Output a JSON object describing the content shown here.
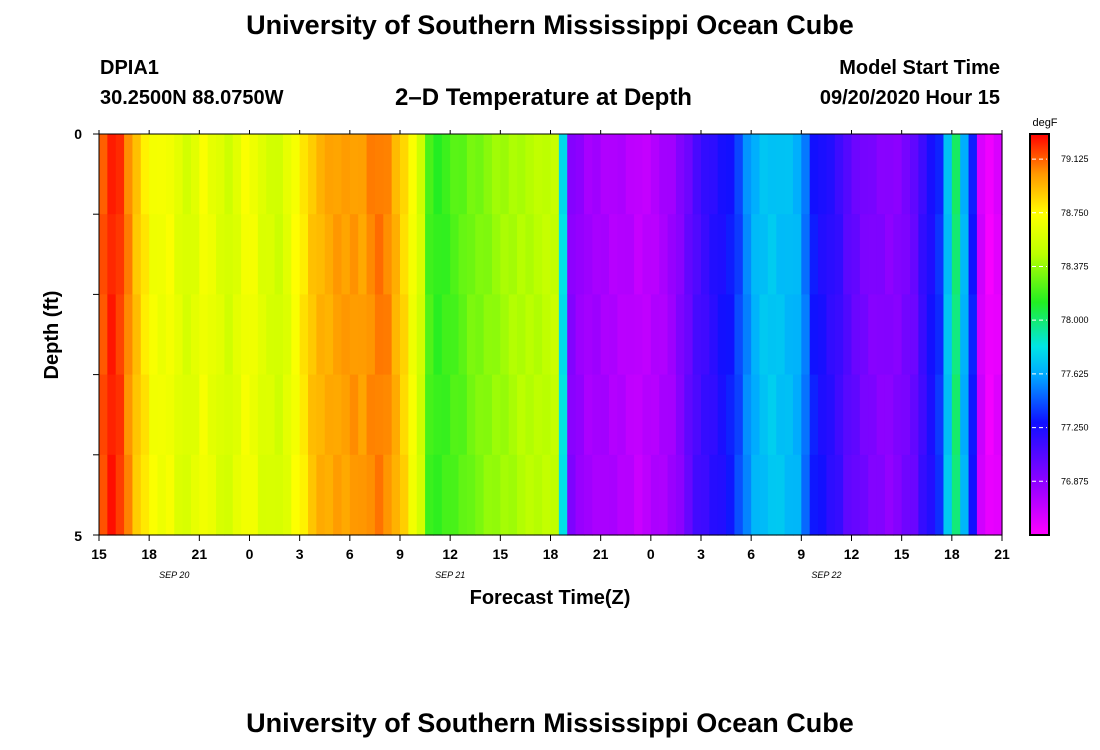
{
  "header": {
    "title": "University of Southern Mississippi Ocean Cube",
    "station_id": "DPIA1",
    "coordinates": "30.2500N 88.0750W",
    "plot_title": "2–D Temperature at Depth",
    "model_start_label": "Model Start Time",
    "model_start_value": "09/20/2020 Hour 15"
  },
  "footer": {
    "title": "University of Southern Mississippi Ocean Cube"
  },
  "chart_data": {
    "type": "heatmap",
    "title": "2–D Temperature at Depth",
    "xlabel": "Forecast Time(Z)",
    "ylabel": "Depth (ft)",
    "x_tick_labels": [
      "15",
      "18",
      "21",
      "0",
      "3",
      "6",
      "9",
      "12",
      "15",
      "18",
      "21",
      "0",
      "3",
      "6",
      "9",
      "12",
      "15",
      "18",
      "21"
    ],
    "x_tick_hours": [
      0,
      3,
      6,
      9,
      12,
      15,
      18,
      21,
      24,
      27,
      30,
      33,
      36,
      39,
      42,
      45,
      48,
      51,
      54
    ],
    "x_range_hours": [
      0,
      54
    ],
    "date_labels": [
      {
        "text": "SEP 20",
        "hour": 4.5
      },
      {
        "text": "SEP 21",
        "hour": 21
      },
      {
        "text": "SEP 22",
        "hour": 43.5
      }
    ],
    "y_tick_labels": [
      "0",
      "5"
    ],
    "ylim": [
      0,
      5
    ],
    "depth_levels": 5,
    "colorbar": {
      "unit": "degF",
      "min": 76.5,
      "max": 79.3,
      "tick_labels": [
        "79.125",
        "78.750",
        "78.375",
        "78.000",
        "77.625",
        "77.250",
        "76.875"
      ],
      "tick_values": [
        79.125,
        78.75,
        78.375,
        78.0,
        77.625,
        77.25,
        76.875
      ]
    },
    "time_hours": [
      0,
      0.5,
      1,
      1.5,
      2,
      2.5,
      3,
      3.5,
      4,
      4.5,
      5,
      5.5,
      6,
      6.5,
      7,
      7.5,
      8,
      8.5,
      9,
      9.5,
      10,
      10.5,
      11,
      11.5,
      12,
      12.5,
      13,
      13.5,
      14,
      14.5,
      15,
      15.5,
      16,
      16.5,
      17,
      17.5,
      18,
      18.5,
      19,
      19.5,
      20,
      20.5,
      21,
      21.5,
      22,
      22.5,
      23,
      23.5,
      24,
      24.5,
      25,
      25.5,
      26,
      26.5,
      27,
      27.5,
      28,
      28.5,
      29,
      29.5,
      30,
      30.5,
      31,
      31.5,
      32,
      32.5,
      33,
      33.5,
      34,
      34.5,
      35,
      35.5,
      36,
      36.5,
      37,
      37.5,
      38,
      38.5,
      39,
      39.5,
      40,
      40.5,
      41,
      41.5,
      42,
      42.5,
      43,
      43.5,
      44,
      44.5,
      45,
      45.5,
      46,
      46.5,
      47,
      47.5,
      48,
      48.5,
      49,
      49.5,
      50,
      50.5,
      51,
      51.5,
      52,
      52.5,
      53,
      53.5
    ],
    "temperature_profile_degF": [
      79.15,
      79.25,
      79.2,
      79.05,
      78.9,
      78.8,
      78.7,
      78.68,
      78.7,
      78.62,
      78.58,
      78.62,
      78.7,
      78.65,
      78.6,
      78.56,
      78.62,
      78.7,
      78.68,
      78.6,
      78.58,
      78.55,
      78.62,
      78.72,
      78.8,
      78.9,
      78.95,
      78.97,
      79.0,
      79.0,
      79.02,
      79.0,
      79.05,
      79.08,
      79.05,
      78.95,
      78.85,
      78.7,
      78.55,
      78.2,
      78.15,
      78.18,
      78.22,
      78.25,
      78.3,
      78.32,
      78.35,
      78.38,
      78.4,
      78.42,
      78.44,
      78.45,
      78.46,
      78.48,
      78.5,
      77.8,
      76.9,
      76.85,
      76.8,
      76.8,
      76.78,
      76.76,
      76.75,
      76.73,
      76.7,
      76.72,
      76.75,
      76.78,
      76.82,
      76.9,
      77.0,
      77.1,
      77.15,
      77.2,
      77.25,
      77.3,
      77.4,
      77.55,
      77.65,
      77.7,
      77.72,
      77.7,
      77.68,
      77.65,
      77.5,
      77.3,
      77.25,
      77.2,
      77.15,
      77.05,
      77.0,
      76.95,
      76.92,
      76.9,
      76.88,
      76.9,
      76.95,
      77.0,
      77.15,
      77.25,
      77.35,
      77.7,
      78.0,
      77.65,
      77.3,
      76.65,
      76.55,
      76.6
    ]
  }
}
